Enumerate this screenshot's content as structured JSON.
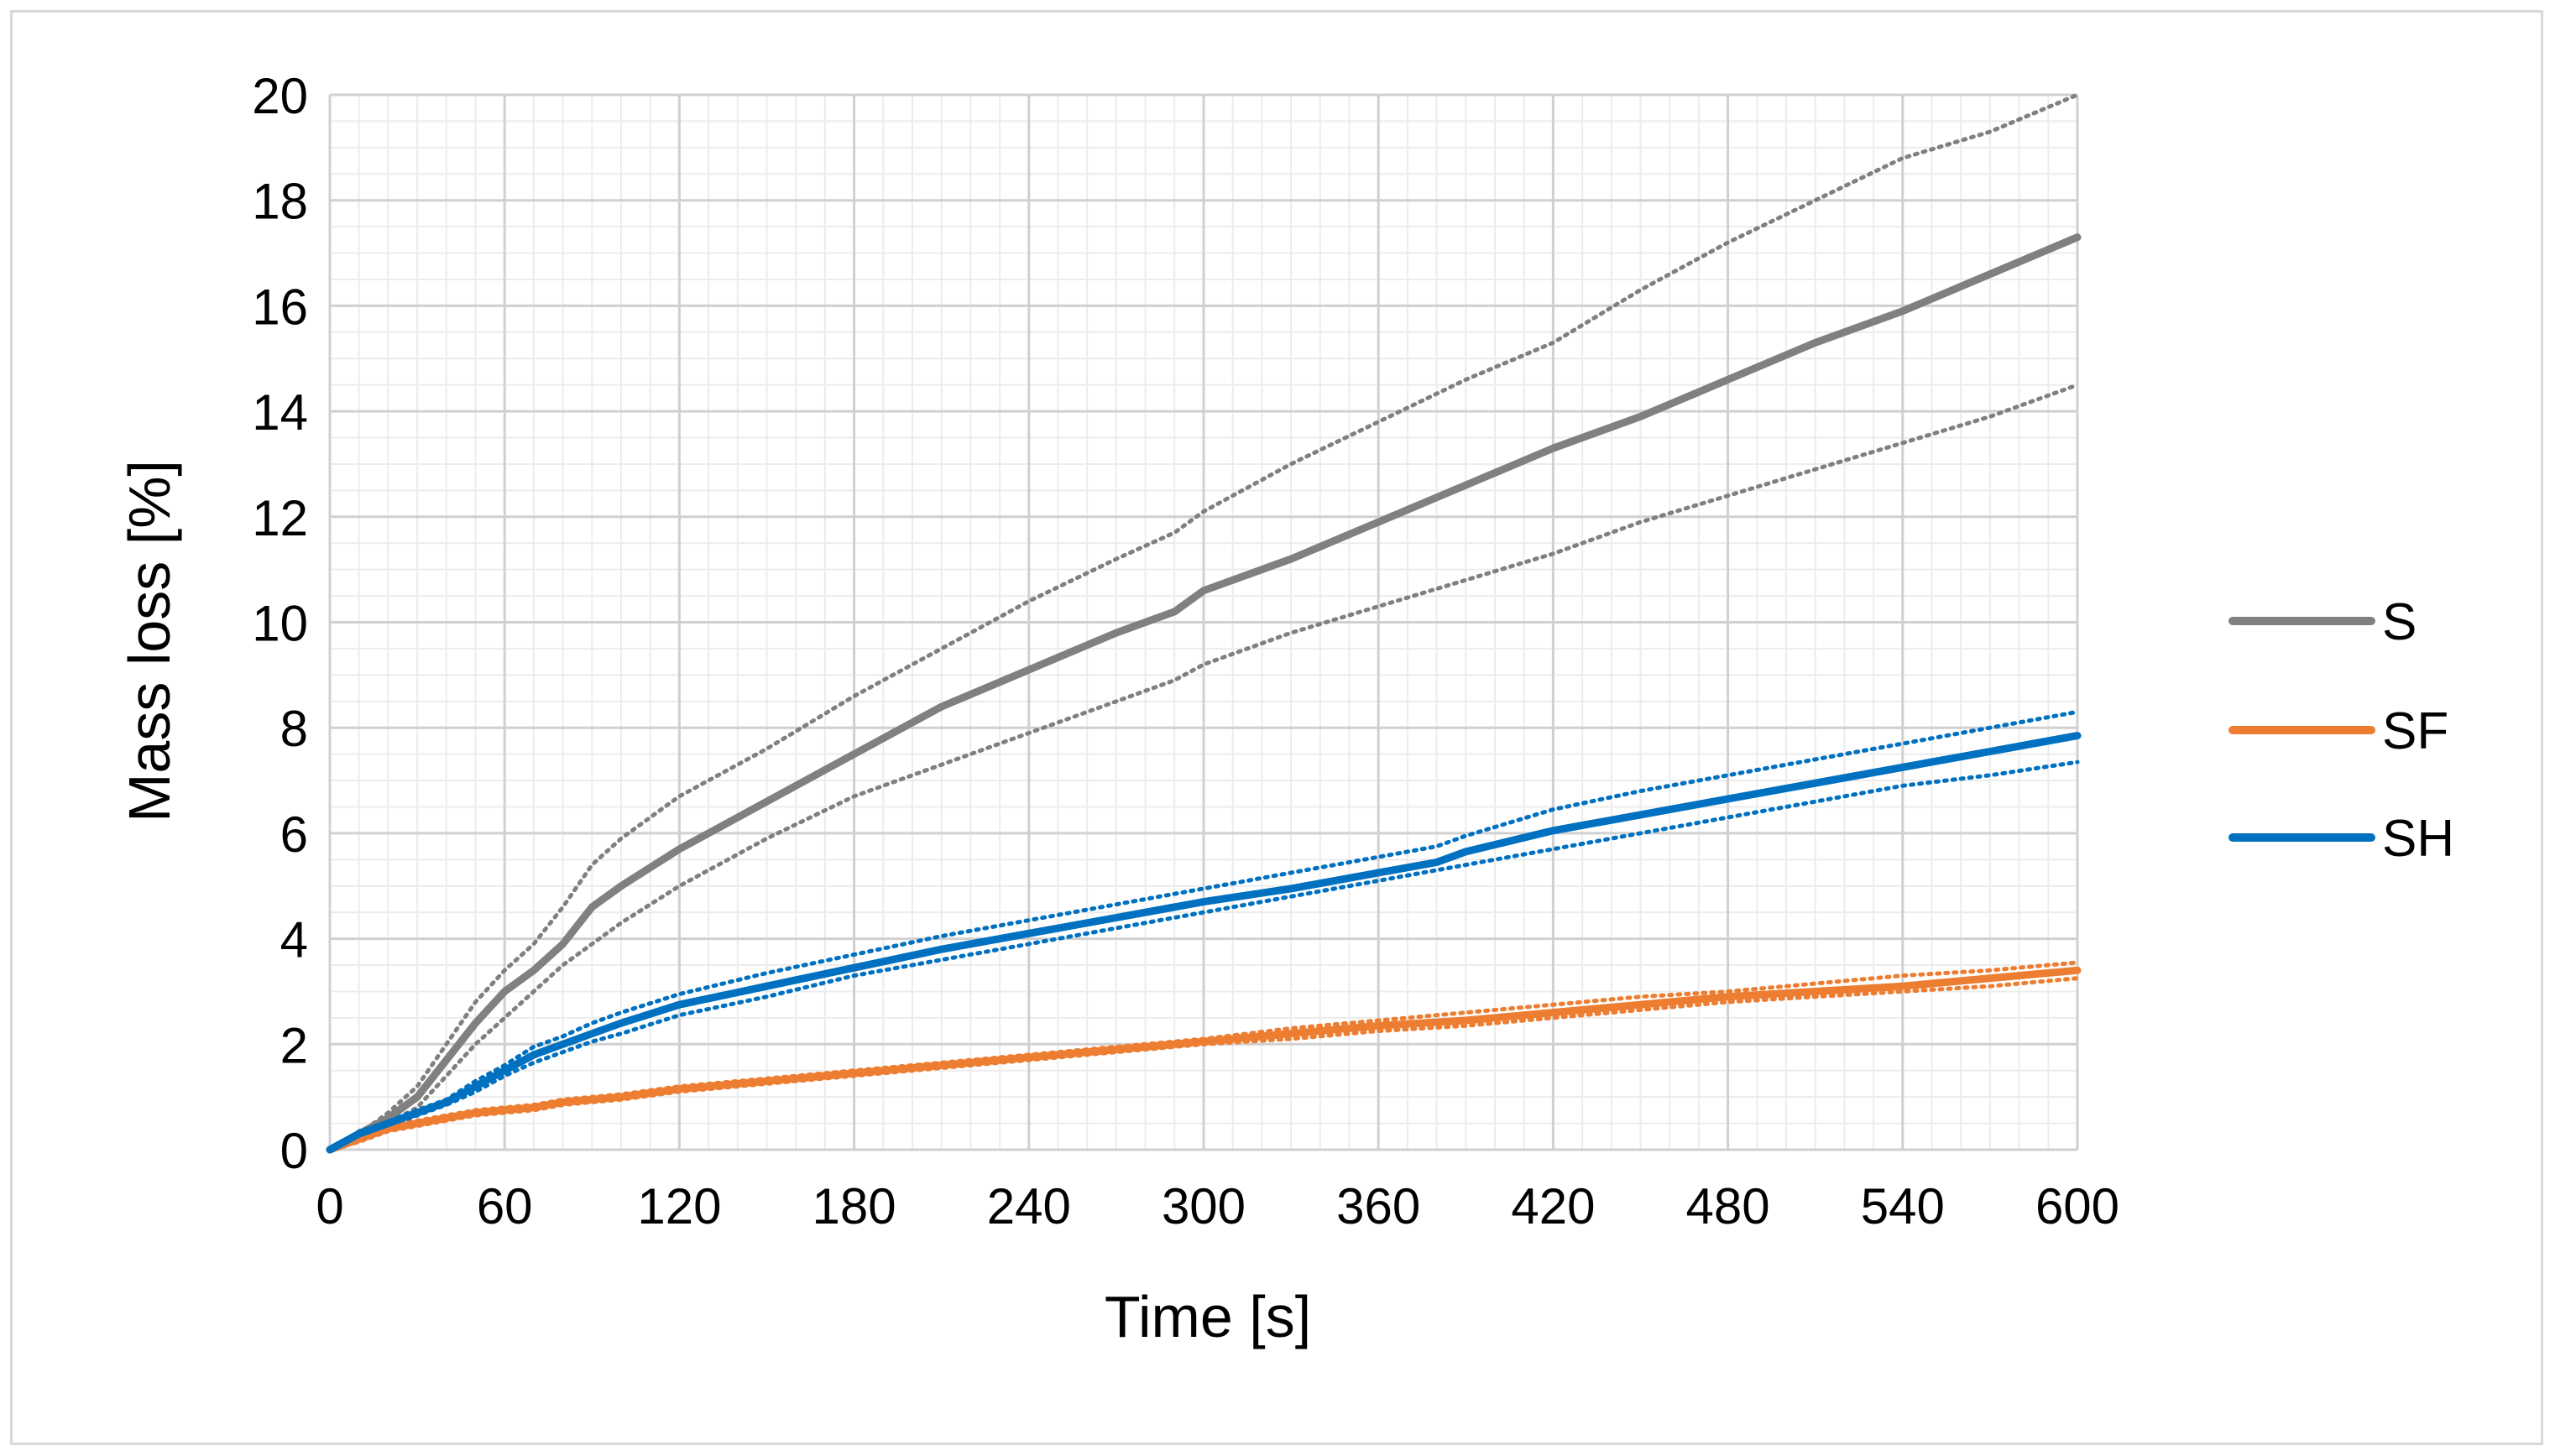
{
  "chart_data": {
    "type": "line",
    "title": "",
    "xlabel": "Time [s]",
    "ylabel": "Mass loss [%]",
    "xlim": [
      0,
      600
    ],
    "ylim": [
      0,
      20
    ],
    "x_ticks": [
      "0",
      "60",
      "120",
      "180",
      "240",
      "300",
      "360",
      "420",
      "480",
      "540",
      "600"
    ],
    "y_ticks": [
      "0",
      "2",
      "4",
      "6",
      "8",
      "10",
      "12",
      "14",
      "16",
      "18",
      "20"
    ],
    "grid": "major and minor",
    "legend_position": "right",
    "series": [
      {
        "name": "S",
        "color": "#808080",
        "x": [
          0,
          10,
          20,
          30,
          40,
          50,
          60,
          70,
          80,
          90,
          100,
          120,
          150,
          180,
          210,
          240,
          270,
          290,
          300,
          330,
          360,
          390,
          420,
          450,
          480,
          510,
          540,
          570,
          600
        ],
        "values": [
          0,
          0.3,
          0.6,
          1.0,
          1.7,
          2.4,
          3.0,
          3.4,
          3.9,
          4.6,
          5.0,
          5.7,
          6.6,
          7.5,
          8.4,
          9.1,
          9.8,
          10.2,
          10.6,
          11.2,
          11.9,
          12.6,
          13.3,
          13.9,
          14.6,
          15.3,
          15.9,
          16.6,
          17.3
        ],
        "lower_bound": [
          0,
          0.2,
          0.5,
          0.8,
          1.4,
          2.0,
          2.5,
          3.0,
          3.5,
          3.9,
          4.3,
          5.0,
          5.9,
          6.7,
          7.3,
          7.9,
          8.5,
          8.9,
          9.2,
          9.8,
          10.3,
          10.8,
          11.3,
          11.9,
          12.4,
          12.9,
          13.4,
          13.9,
          14.5
        ],
        "upper_bound": [
          0,
          0.3,
          0.7,
          1.2,
          2.0,
          2.8,
          3.4,
          3.9,
          4.6,
          5.4,
          5.9,
          6.7,
          7.6,
          8.6,
          9.5,
          10.4,
          11.2,
          11.7,
          12.1,
          13.0,
          13.8,
          14.6,
          15.3,
          16.3,
          17.2,
          18.0,
          18.8,
          19.3,
          20.0
        ]
      },
      {
        "name": "SF",
        "color": "#ed7d31",
        "x": [
          0,
          10,
          20,
          30,
          40,
          50,
          60,
          70,
          80,
          90,
          100,
          120,
          150,
          180,
          210,
          240,
          270,
          300,
          330,
          360,
          390,
          420,
          450,
          480,
          510,
          540,
          570,
          600
        ],
        "values": [
          0,
          0.2,
          0.4,
          0.5,
          0.6,
          0.7,
          0.75,
          0.8,
          0.9,
          0.95,
          1.0,
          1.15,
          1.3,
          1.45,
          1.6,
          1.75,
          1.9,
          2.05,
          2.2,
          2.35,
          2.45,
          2.6,
          2.75,
          2.9,
          3.0,
          3.1,
          3.25,
          3.4
        ],
        "lower_bound": [
          0,
          0.15,
          0.35,
          0.45,
          0.55,
          0.65,
          0.7,
          0.75,
          0.85,
          0.9,
          0.95,
          1.1,
          1.25,
          1.4,
          1.55,
          1.7,
          1.85,
          2.0,
          2.1,
          2.25,
          2.35,
          2.5,
          2.65,
          2.8,
          2.9,
          3.0,
          3.1,
          3.25
        ],
        "upper_bound": [
          0,
          0.25,
          0.45,
          0.55,
          0.65,
          0.75,
          0.8,
          0.85,
          0.95,
          1.0,
          1.05,
          1.2,
          1.35,
          1.5,
          1.65,
          1.8,
          1.95,
          2.1,
          2.3,
          2.45,
          2.6,
          2.75,
          2.9,
          3.0,
          3.15,
          3.3,
          3.4,
          3.55
        ]
      },
      {
        "name": "SH",
        "color": "#0070c0",
        "x": [
          0,
          10,
          20,
          30,
          40,
          50,
          60,
          70,
          80,
          90,
          100,
          120,
          150,
          180,
          210,
          240,
          270,
          300,
          330,
          360,
          380,
          390,
          420,
          450,
          480,
          510,
          540,
          570,
          600
        ],
        "values": [
          0,
          0.3,
          0.5,
          0.7,
          0.9,
          1.2,
          1.5,
          1.8,
          2.0,
          2.2,
          2.4,
          2.75,
          3.1,
          3.45,
          3.8,
          4.1,
          4.4,
          4.7,
          4.95,
          5.25,
          5.45,
          5.65,
          6.05,
          6.35,
          6.65,
          6.95,
          7.25,
          7.55,
          7.85
        ],
        "lower_bound": [
          0,
          0.25,
          0.45,
          0.65,
          0.85,
          1.1,
          1.4,
          1.65,
          1.85,
          2.05,
          2.2,
          2.55,
          2.9,
          3.3,
          3.6,
          3.9,
          4.2,
          4.5,
          4.8,
          5.1,
          5.3,
          5.4,
          5.7,
          6.0,
          6.3,
          6.6,
          6.9,
          7.1,
          7.35
        ],
        "upper_bound": [
          0,
          0.35,
          0.55,
          0.75,
          0.95,
          1.3,
          1.6,
          1.95,
          2.15,
          2.4,
          2.6,
          2.95,
          3.35,
          3.7,
          4.05,
          4.35,
          4.65,
          4.95,
          5.25,
          5.55,
          5.75,
          5.95,
          6.45,
          6.8,
          7.1,
          7.4,
          7.7,
          8.0,
          8.3
        ]
      }
    ]
  }
}
